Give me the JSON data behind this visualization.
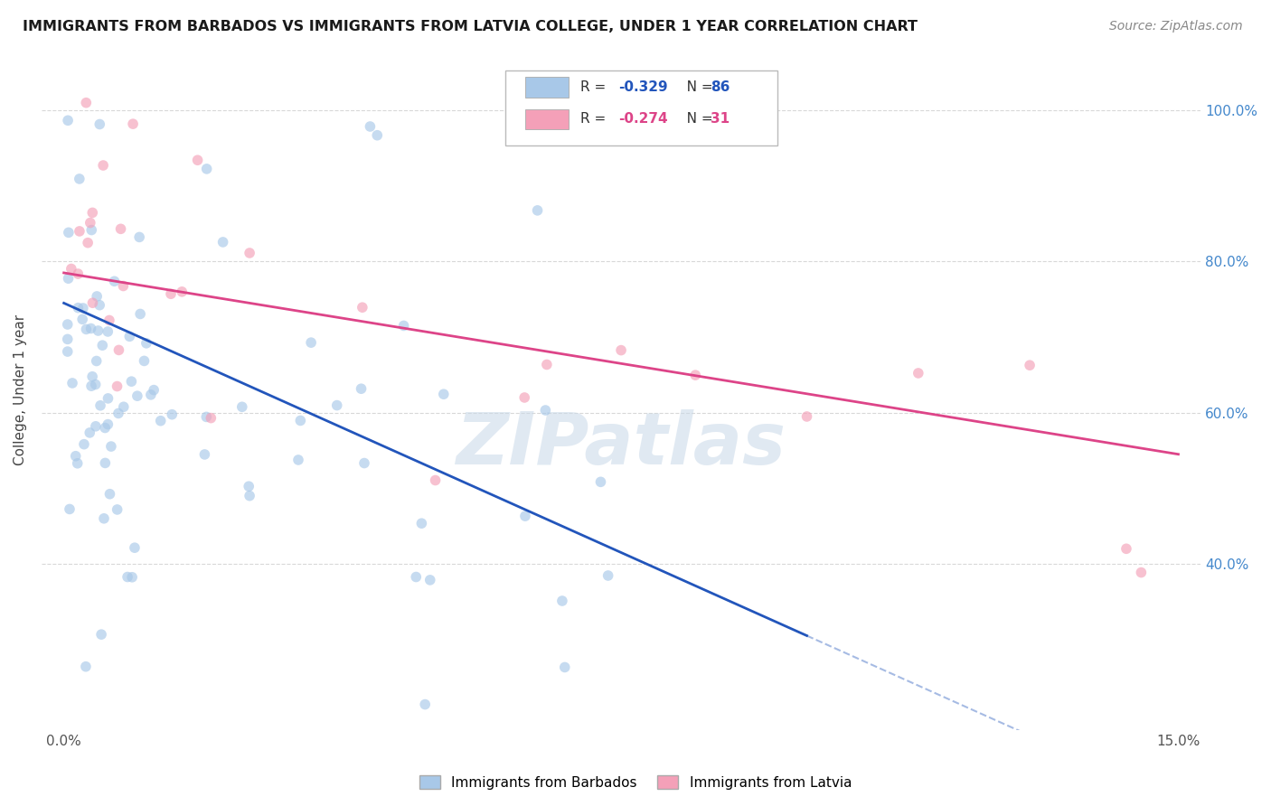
{
  "title": "IMMIGRANTS FROM BARBADOS VS IMMIGRANTS FROM LATVIA COLLEGE, UNDER 1 YEAR CORRELATION CHART",
  "source": "Source: ZipAtlas.com",
  "ylabel": "College, Under 1 year",
  "x_min": 0.0,
  "x_max": 0.15,
  "y_min": 0.18,
  "y_max": 1.08,
  "y_ticks": [
    0.4,
    0.6,
    0.8,
    1.0
  ],
  "y_tick_labels_right": [
    "40.0%",
    "60.0%",
    "80.0%",
    "100.0%"
  ],
  "x_ticks": [
    0.0,
    0.03,
    0.06,
    0.09,
    0.12,
    0.15
  ],
  "x_tick_labels": [
    "0.0%",
    "",
    "",
    "",
    "",
    "15.0%"
  ],
  "legend_r_barbados": "-0.329",
  "legend_n_barbados": "86",
  "legend_r_latvia": "-0.274",
  "legend_n_latvia": "31",
  "legend_label_barbados": "Immigrants from Barbados",
  "legend_label_latvia": "Immigrants from Latvia",
  "color_barbados": "#a8c8e8",
  "color_latvia": "#f4a0b8",
  "line_color_barbados": "#2255bb",
  "line_color_latvia": "#dd4488",
  "scatter_alpha": 0.65,
  "scatter_size": 70,
  "line_barbados_x0": 0.0,
  "line_barbados_y0": 0.745,
  "line_barbados_x1": 0.1,
  "line_barbados_y1": 0.305,
  "line_latvia_x0": 0.0,
  "line_latvia_y0": 0.785,
  "line_latvia_x1": 0.15,
  "line_latvia_y1": 0.545,
  "watermark": "ZIPatlas",
  "background_color": "#ffffff",
  "grid_color": "#d8d8d8",
  "right_tick_color": "#4488cc"
}
